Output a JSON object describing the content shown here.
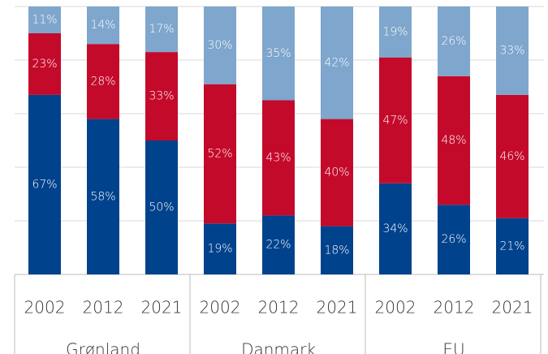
{
  "chart_data": {
    "type": "stacked_bar",
    "groups": [
      {
        "label": "Grønland",
        "categories": [
          "2002",
          "2012",
          "2021"
        ]
      },
      {
        "label": "Danmark",
        "categories": [
          "2002",
          "2012",
          "2021"
        ]
      },
      {
        "label": "EU",
        "categories": [
          "2002",
          "2012",
          "2021"
        ]
      }
    ],
    "series": [
      {
        "color": "#00428c",
        "values": [
          67,
          58,
          50,
          19,
          22,
          18,
          34,
          26,
          21
        ],
        "value_labels": [
          "67%",
          "58%",
          "50%",
          "19%",
          "22%",
          "18%",
          "34%",
          "26%",
          "21%"
        ]
      },
      {
        "color": "#c40a2b",
        "values": [
          23,
          28,
          33,
          52,
          43,
          40,
          47,
          48,
          46
        ],
        "value_labels": [
          "23%",
          "28%",
          "33%",
          "52%",
          "43%",
          "40%",
          "47%",
          "48%",
          "46%"
        ]
      },
      {
        "color": "#7fa6cc",
        "values": [
          11,
          14,
          17,
          30,
          35,
          42,
          19,
          26,
          33
        ],
        "value_labels": [
          "11%",
          "14%",
          "17%",
          "30%",
          "35%",
          "42%",
          "19%",
          "26%",
          "33%"
        ]
      }
    ],
    "ylim": [
      0,
      100
    ],
    "yticks": [
      0,
      20,
      40,
      60,
      80,
      100
    ],
    "grid": true
  }
}
